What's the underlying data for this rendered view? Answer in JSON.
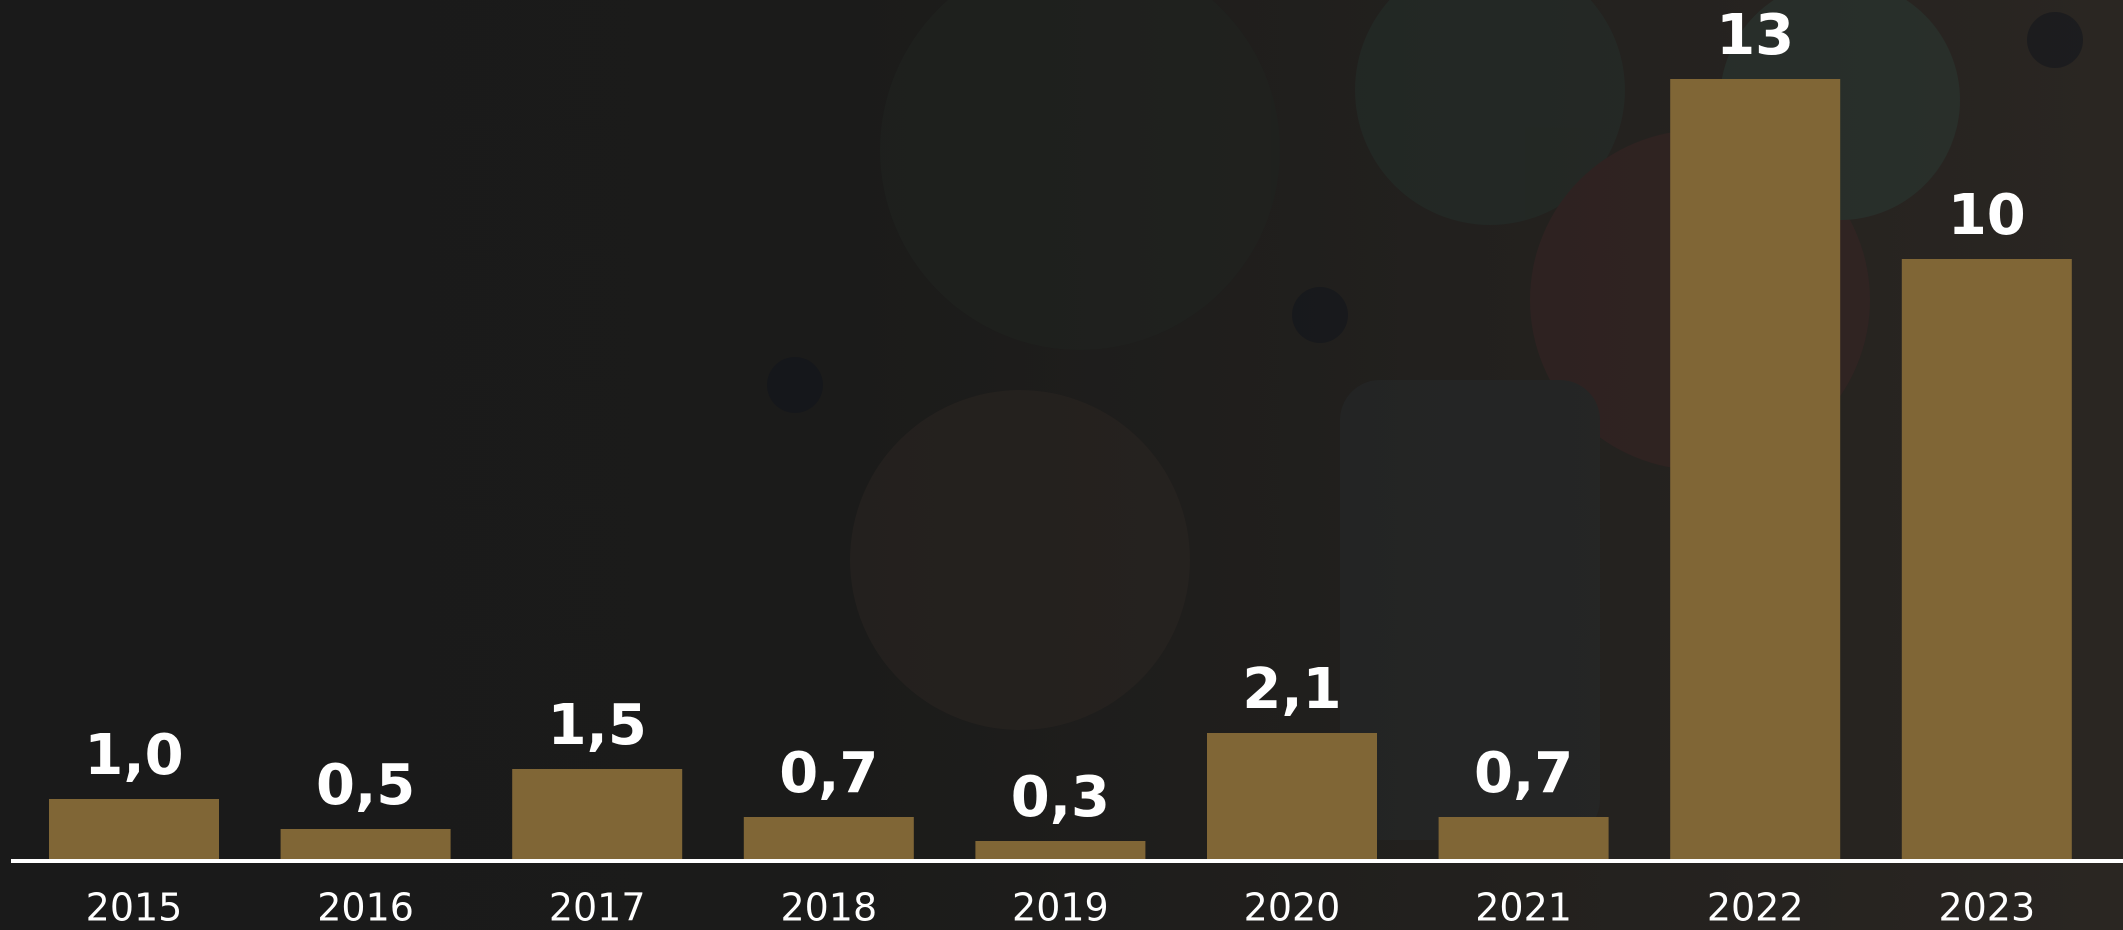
{
  "chart_data": {
    "type": "bar",
    "categories": [
      "2015",
      "2016",
      "2017",
      "2018",
      "2019",
      "2020",
      "2021",
      "2022",
      "2023"
    ],
    "values": [
      1.0,
      0.5,
      1.5,
      0.7,
      0.3,
      2.1,
      0.7,
      13,
      10
    ],
    "value_labels": [
      "1,0",
      "0,5",
      "1,5",
      "0,7",
      "0,3",
      "2,1",
      "0,7",
      "13",
      "10"
    ],
    "color": "#806636"
  }
}
